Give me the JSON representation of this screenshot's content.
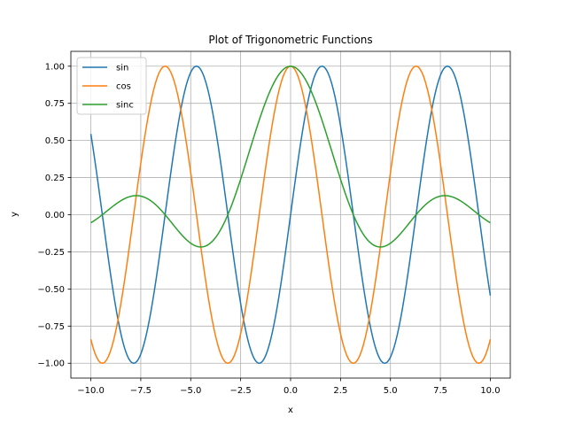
{
  "chart_data": {
    "type": "line",
    "title": "Plot of Trigonometric Functions",
    "xlabel": "x",
    "ylabel": "y",
    "xlim": [
      -11,
      11
    ],
    "ylim": [
      -1.1,
      1.1
    ],
    "x_range": [
      -10,
      10
    ],
    "xticks": [
      -10,
      -7.5,
      -5,
      -2.5,
      0,
      2.5,
      5,
      7.5,
      10
    ],
    "xtick_labels": [
      "−10.0",
      "−7.5",
      "−5.0",
      "−2.5",
      "0.0",
      "2.5",
      "5.0",
      "7.5",
      "10.0"
    ],
    "yticks": [
      -1,
      -0.75,
      -0.5,
      -0.25,
      0,
      0.25,
      0.5,
      0.75,
      1
    ],
    "ytick_labels": [
      "−1.00",
      "−0.75",
      "−0.50",
      "−0.25",
      "0.00",
      "0.25",
      "0.50",
      "0.75",
      "1.00"
    ],
    "grid": true,
    "legend_position": "top-left",
    "series": [
      {
        "name": "sin",
        "function": "sin(x)",
        "color": "#1f77b4"
      },
      {
        "name": "cos",
        "function": "cos(x)",
        "color": "#ff7f0e"
      },
      {
        "name": "sinc",
        "function": "sin(x)/x",
        "color": "#2ca02c"
      }
    ]
  }
}
